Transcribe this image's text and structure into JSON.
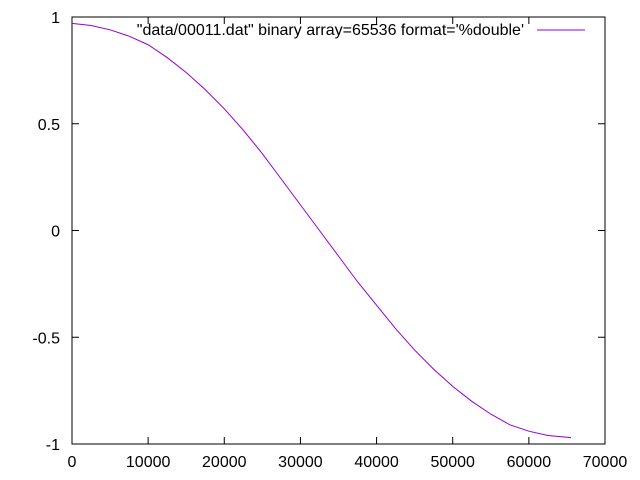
{
  "chart_data": {
    "type": "line",
    "title": "",
    "xlabel": "",
    "ylabel": "",
    "xlim": [
      0,
      70000
    ],
    "ylim": [
      -1,
      1
    ],
    "xticks": [
      0,
      10000,
      20000,
      30000,
      40000,
      50000,
      60000,
      70000
    ],
    "xtick_labels": [
      "0",
      "10000",
      "20000",
      "30000",
      "40000",
      "50000",
      "60000",
      "70000"
    ],
    "yticks": [
      -1,
      -0.5,
      0,
      0.5,
      1
    ],
    "ytick_labels": [
      "-1",
      "-0.5",
      "0",
      "0.5",
      "1"
    ],
    "grid": false,
    "legend_position": "top-right",
    "series": [
      {
        "name": "\"data/00011.dat\" binary array=65536 format='%double'",
        "color": "#9400d3",
        "x": [
          0,
          2500,
          5000,
          7500,
          10000,
          12500,
          15000,
          17500,
          20000,
          22500,
          25000,
          27500,
          30000,
          32500,
          35000,
          37500,
          40000,
          42500,
          45000,
          47500,
          50000,
          52500,
          55000,
          57500,
          60000,
          62500,
          65535
        ],
        "y": [
          0.97,
          0.96,
          0.94,
          0.91,
          0.87,
          0.81,
          0.74,
          0.66,
          0.57,
          0.47,
          0.36,
          0.24,
          0.12,
          0.0,
          -0.12,
          -0.24,
          -0.35,
          -0.46,
          -0.56,
          -0.65,
          -0.73,
          -0.8,
          -0.86,
          -0.91,
          -0.94,
          -0.96,
          -0.97
        ]
      }
    ]
  }
}
